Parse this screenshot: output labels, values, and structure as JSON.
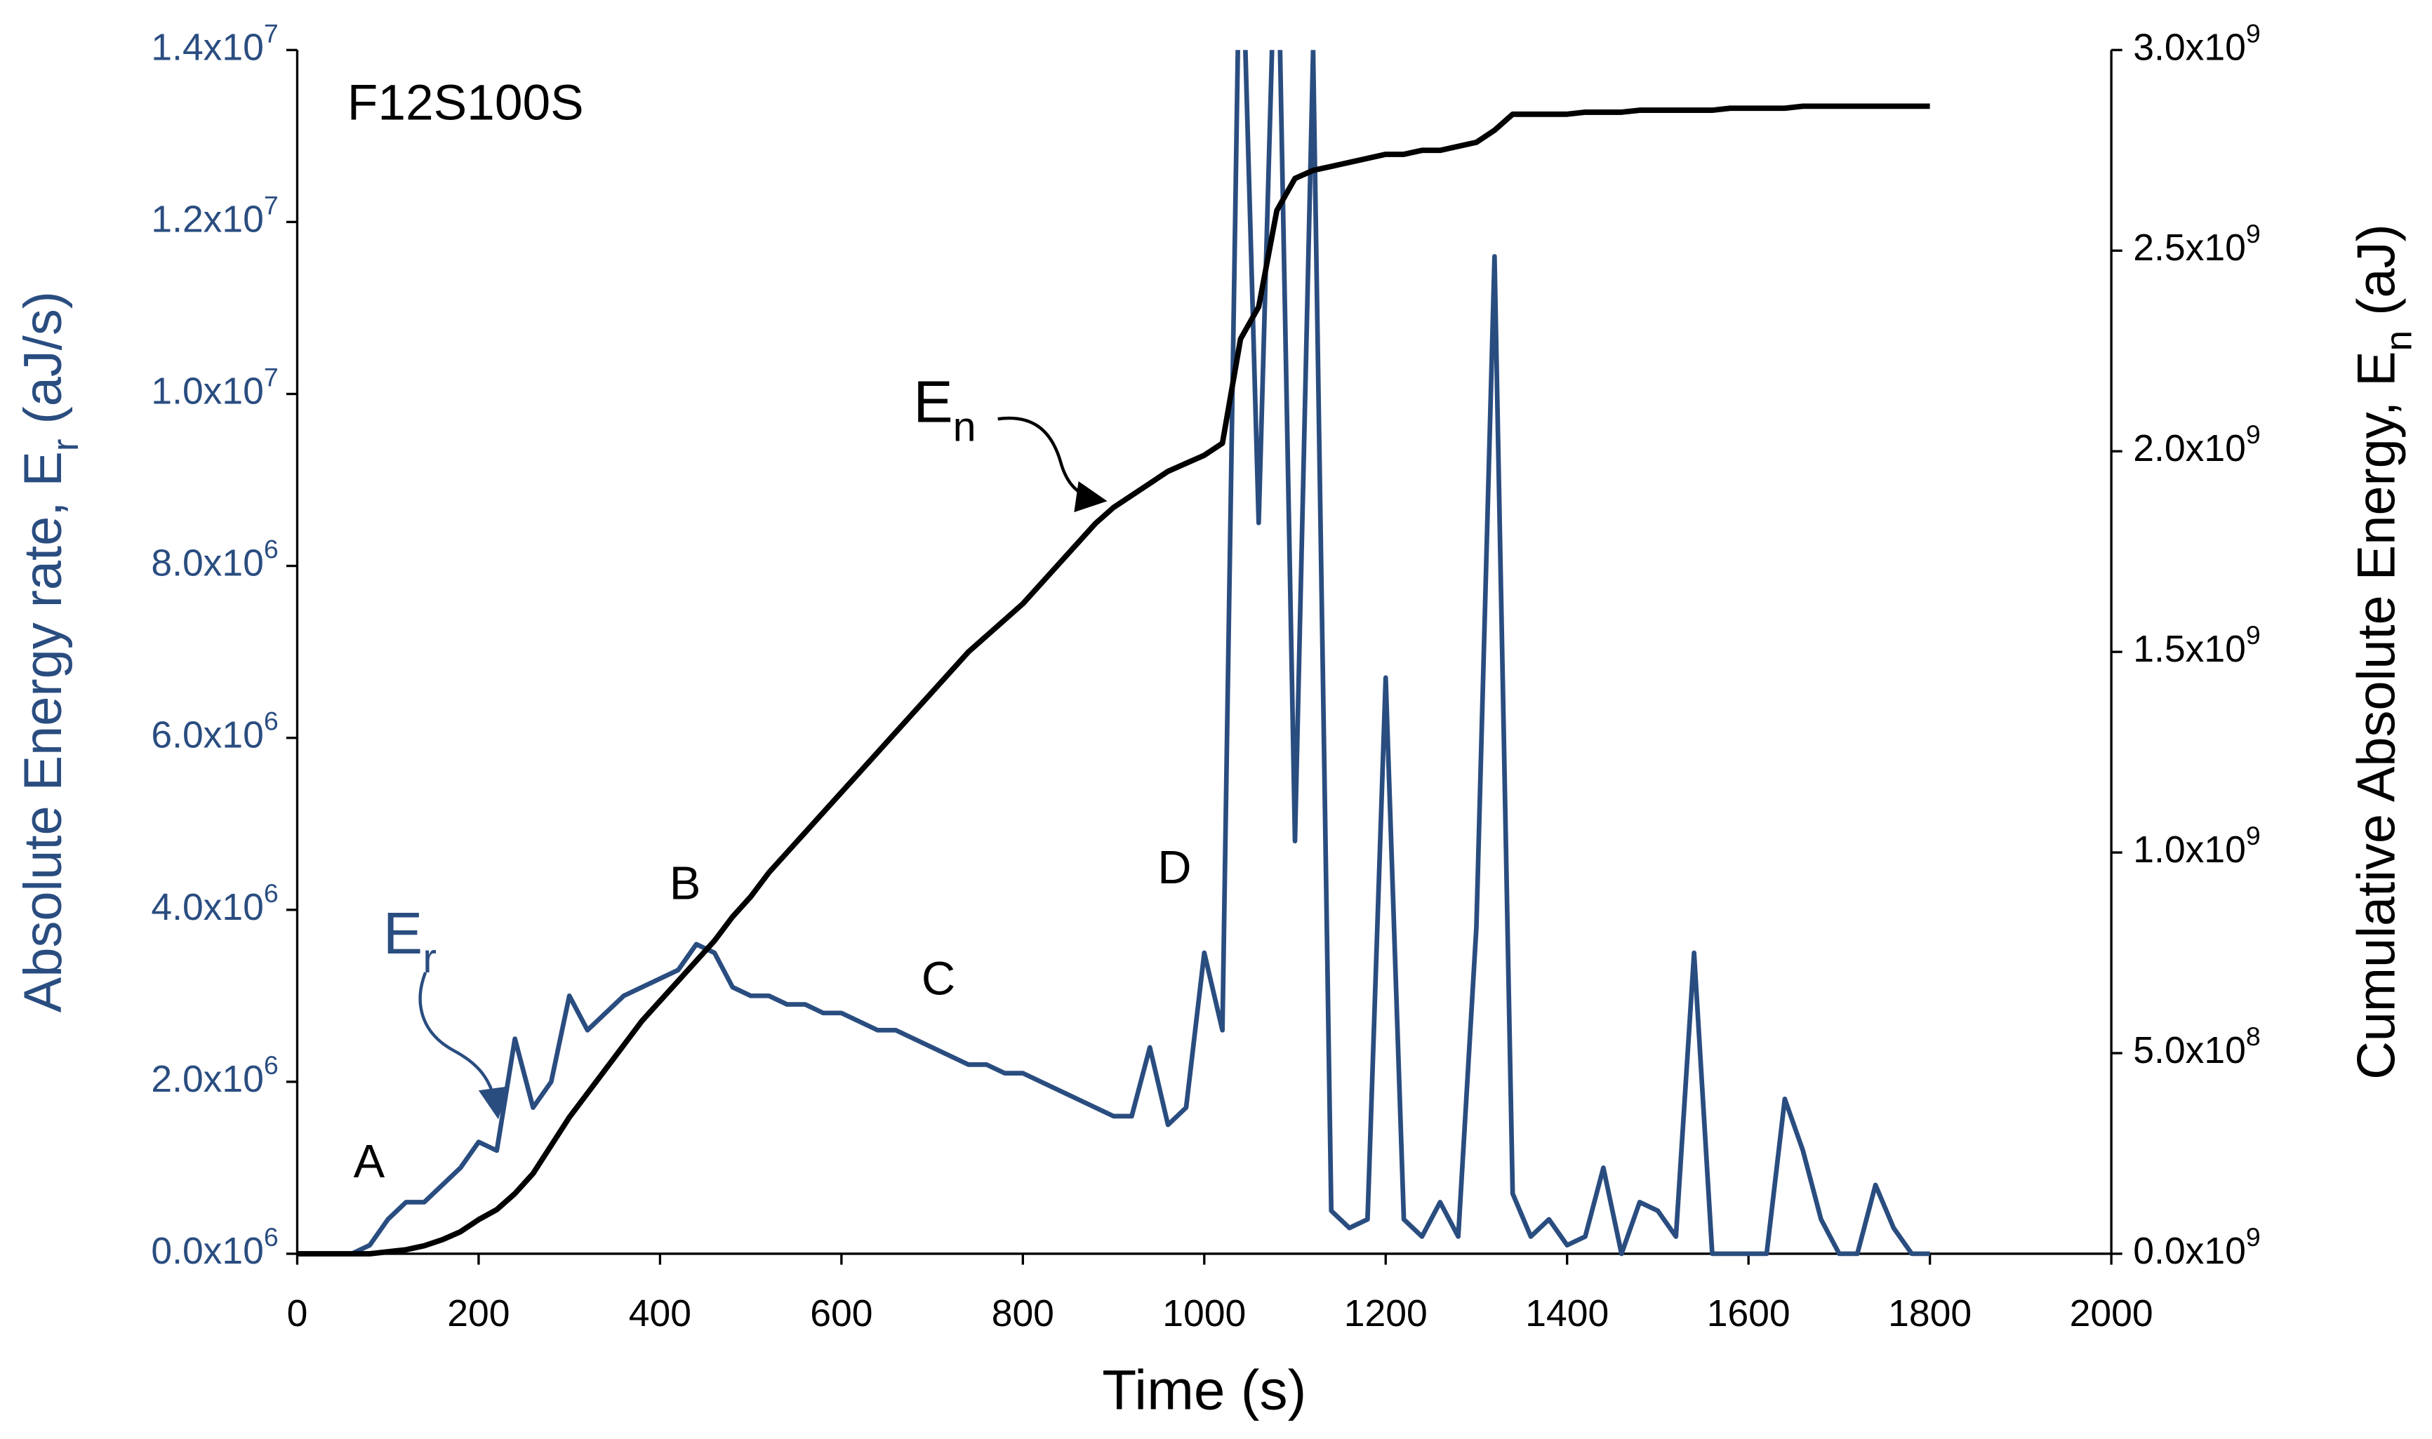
{
  "chart_data": {
    "type": "line",
    "x": [
      0,
      20,
      40,
      60,
      80,
      100,
      120,
      140,
      160,
      180,
      200,
      220,
      240,
      260,
      280,
      300,
      320,
      340,
      360,
      380,
      400,
      420,
      440,
      460,
      480,
      500,
      520,
      540,
      560,
      580,
      600,
      620,
      640,
      660,
      680,
      700,
      720,
      740,
      760,
      780,
      800,
      820,
      840,
      860,
      880,
      900,
      920,
      940,
      960,
      980,
      1000,
      1020,
      1040,
      1060,
      1080,
      1100,
      1120,
      1140,
      1160,
      1180,
      1200,
      1220,
      1240,
      1260,
      1280,
      1300,
      1320,
      1340,
      1360,
      1380,
      1400,
      1420,
      1440,
      1460,
      1480,
      1500,
      1520,
      1540,
      1560,
      1580,
      1600,
      1620,
      1640,
      1660,
      1680,
      1700,
      1720,
      1740,
      1760,
      1780,
      1800
    ],
    "series": [
      {
        "name": "E_r",
        "color": "#2a4d80",
        "axis": "y",
        "values": [
          0,
          0,
          0,
          0,
          100000.0,
          400000.0,
          600000.0,
          600000.0,
          800000.0,
          1000000.0,
          1300000.0,
          1200000.0,
          2500000.0,
          1700000.0,
          2000000.0,
          3000000.0,
          2600000.0,
          2800000.0,
          3000000.0,
          3100000.0,
          3200000.0,
          3300000.0,
          3600000.0,
          3500000.0,
          3100000.0,
          3000000.0,
          3000000.0,
          2900000.0,
          2900000.0,
          2800000.0,
          2800000.0,
          2700000.0,
          2600000.0,
          2600000.0,
          2500000.0,
          2400000.0,
          2300000.0,
          2200000.0,
          2200000.0,
          2100000.0,
          2100000.0,
          2000000.0,
          1900000.0,
          1800000.0,
          1700000.0,
          1600000.0,
          1600000.0,
          2400000.0,
          1500000.0,
          1700000.0,
          3500000.0,
          2600000.0,
          16000000.0,
          8500000.0,
          16000000.0,
          4800000.0,
          14000000.0,
          500000.0,
          300000.0,
          400000.0,
          6700000.0,
          400000.0,
          200000.0,
          600000.0,
          200000.0,
          3800000.0,
          11600000.0,
          700000.0,
          200000.0,
          400000.0,
          100000.0,
          200000.0,
          1000000.0,
          0,
          600000.0,
          500000.0,
          200000.0,
          3500000.0,
          0,
          0,
          0,
          0,
          1800000.0,
          1200000.0,
          400000.0,
          0,
          0,
          800000.0,
          300000.0,
          0,
          0
        ]
      },
      {
        "name": "E_n",
        "color": "#000000",
        "axis": "y2",
        "values": [
          0,
          0,
          0,
          0,
          0,
          5000000.0,
          10000000.0,
          20000000.0,
          35000000.0,
          55000000.0,
          85000000.0,
          110000000.0,
          150000000.0,
          200000000.0,
          270000000.0,
          340000000.0,
          400000000.0,
          460000000.0,
          520000000.0,
          580000000.0,
          630000000.0,
          680000000.0,
          730000000.0,
          780000000.0,
          840000000.0,
          890000000.0,
          950000000.0,
          1000000000.0,
          1050000000.0,
          1100000000.0,
          1150000000.0,
          1200000000.0,
          1250000000.0,
          1300000000.0,
          1350000000.0,
          1400000000.0,
          1450000000.0,
          1500000000.0,
          1540000000.0,
          1580000000.0,
          1620000000.0,
          1670000000.0,
          1720000000.0,
          1770000000.0,
          1820000000.0,
          1860000000.0,
          1890000000.0,
          1920000000.0,
          1950000000.0,
          1970000000.0,
          1990000000.0,
          2020000000.0,
          2280000000.0,
          2360000000.0,
          2600000000.0,
          2680000000.0,
          2700000000.0,
          2710000000.0,
          2720000000.0,
          2730000000.0,
          2740000000.0,
          2740000000.0,
          2750000000.0,
          2750000000.0,
          2760000000.0,
          2770000000.0,
          2800000000.0,
          2840000000.0,
          2840000000.0,
          2840000000.0,
          2840000000.0,
          2845000000.0,
          2845000000.0,
          2845000000.0,
          2850000000.0,
          2850000000.0,
          2850000000.0,
          2850000000.0,
          2850000000.0,
          2855000000.0,
          2855000000.0,
          2855000000.0,
          2855000000.0,
          2860000000.0,
          2860000000.0,
          2860000000.0,
          2860000000.0,
          2860000000.0,
          2860000000.0,
          2860000000.0,
          2860000000.0
        ]
      }
    ],
    "xlabel": "Time (s)",
    "ylabel": "Absolute Energy rate, E_r (aJ/s)",
    "y2label": "Cumulative Absolute Energy, E_n (aJ)",
    "xlim": [
      0,
      2000
    ],
    "xticks": [
      0,
      200,
      400,
      600,
      800,
      1000,
      1200,
      1400,
      1600,
      1800,
      2000
    ],
    "ylim": [
      0,
      14000000
    ],
    "yticks": [
      {
        "value": 0,
        "label": "0.0x10^6"
      },
      {
        "value": 2000000,
        "label": "2.0x10^6"
      },
      {
        "value": 4000000,
        "label": "4.0x10^6"
      },
      {
        "value": 6000000,
        "label": "6.0x10^6"
      },
      {
        "value": 8000000,
        "label": "8.0x10^6"
      },
      {
        "value": 10000000,
        "label": "1.0x10^7"
      },
      {
        "value": 12000000,
        "label": "1.2x10^7"
      },
      {
        "value": 14000000,
        "label": "1.4x10^7"
      }
    ],
    "y2lim": [
      0,
      3000000000
    ],
    "y2ticks": [
      {
        "value": 0,
        "label": "0.0x10^9"
      },
      {
        "value": 500000000,
        "label": "5.0x10^8"
      },
      {
        "value": 1000000000,
        "label": "1.0x10^9"
      },
      {
        "value": 1500000000,
        "label": "1.5x10^9"
      },
      {
        "value": 2000000000,
        "label": "2.0x10^9"
      },
      {
        "value": 2500000000,
        "label": "2.5x10^9"
      },
      {
        "value": 3000000000,
        "label": "3.0x10^9"
      }
    ],
    "annotations": [
      "F12S100S",
      "A",
      "B",
      "C",
      "D",
      "E_r",
      "E_n"
    ]
  }
}
